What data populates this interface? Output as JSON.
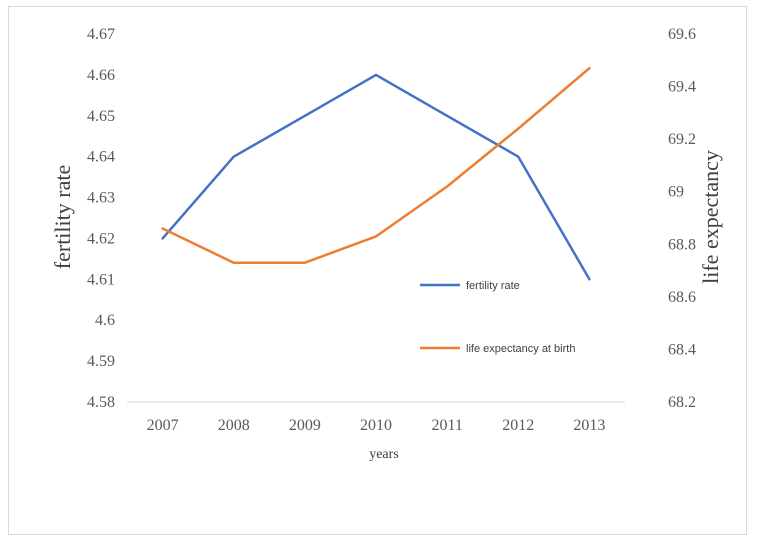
{
  "chart_data": {
    "type": "line",
    "x": [
      "2007",
      "2008",
      "2009",
      "2010",
      "2011",
      "2012",
      "2013"
    ],
    "xlabel": "years",
    "ylabel_left": "fertility rate",
    "ylabel_right": "life expectancy",
    "ylim_left": [
      4.58,
      4.67
    ],
    "ylim_right": [
      68.2,
      69.6
    ],
    "yticks_left": [
      "4.58",
      "4.59",
      "4.6",
      "4.61",
      "4.62",
      "4.63",
      "4.64",
      "4.65",
      "4.66",
      "4.67"
    ],
    "yticks_right": [
      "68.2",
      "68.4",
      "68.6",
      "68.8",
      "69",
      "69.2",
      "69.4",
      "69.6"
    ],
    "grid": false,
    "legend_position": "right",
    "series": [
      {
        "name": "fertility rate",
        "axis": "left",
        "color": "#4472c4",
        "values": [
          4.62,
          4.64,
          4.65,
          4.66,
          4.65,
          4.64,
          4.61
        ]
      },
      {
        "name": "life expectancy at birth",
        "axis": "right",
        "color": "#ed7d31",
        "values": [
          68.86,
          68.73,
          68.73,
          68.83,
          69.02,
          69.24,
          69.47
        ]
      }
    ]
  }
}
